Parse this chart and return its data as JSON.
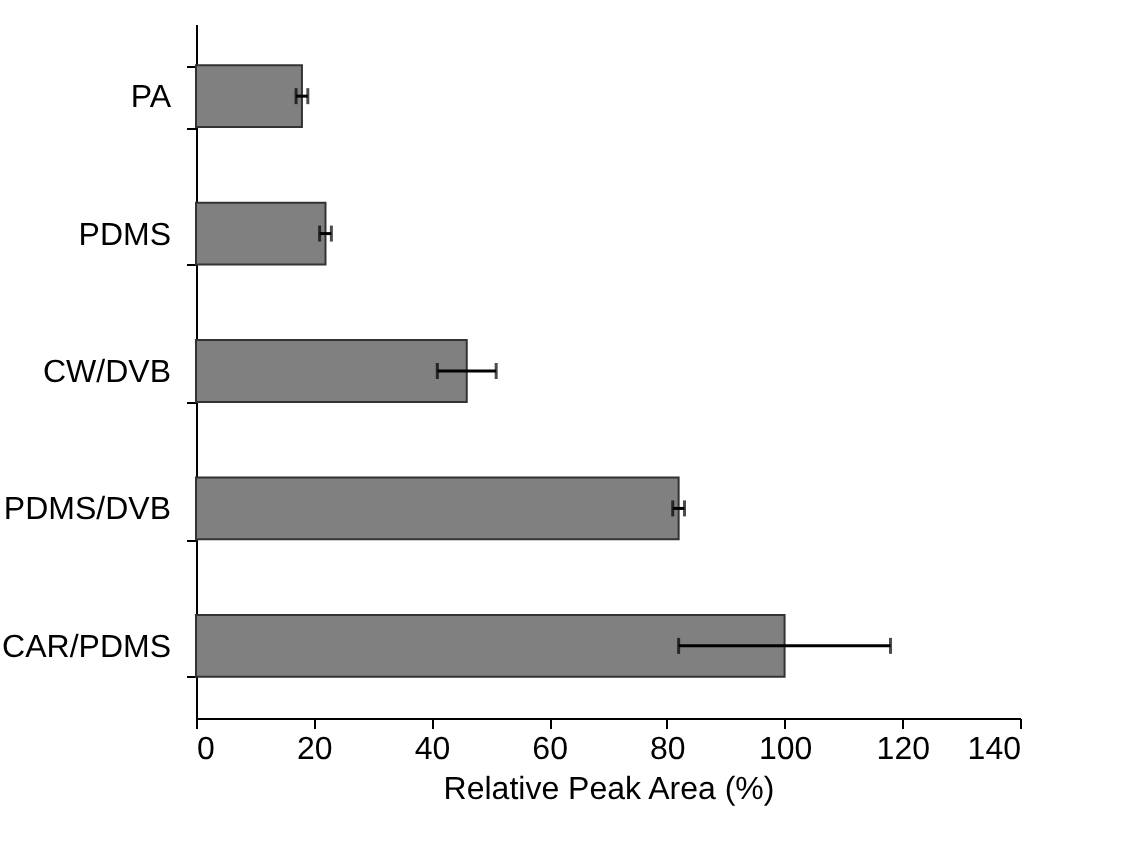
{
  "chart_data": {
    "type": "bar",
    "orientation": "horizontal",
    "xlabel": "Relative Peak Area (%)",
    "categories": [
      "PA",
      "PDMS",
      "CW/DVB",
      "PDMS/DVB",
      "CAR/PDMS"
    ],
    "values": [
      18,
      22,
      46,
      82,
      100
    ],
    "errors": [
      1,
      1,
      5,
      1,
      18
    ],
    "color": "#808080",
    "xlim": [
      0,
      140
    ],
    "xticks": [
      0,
      20,
      40,
      60,
      80,
      100,
      120,
      140
    ],
    "grid": false
  }
}
